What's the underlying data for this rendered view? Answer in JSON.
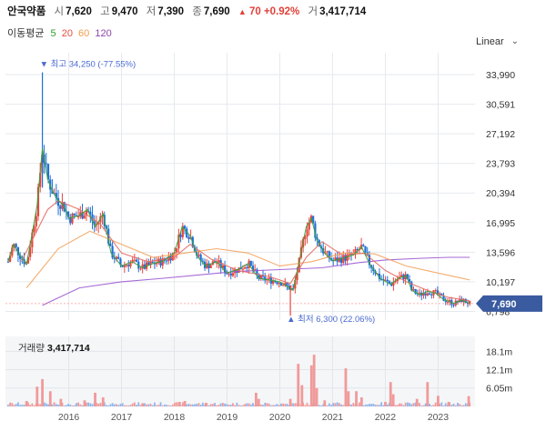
{
  "header": {
    "name": "안국약품",
    "open_label": "시",
    "open": "7,620",
    "high_label": "고",
    "high": "9,470",
    "low_label": "저",
    "low": "7,390",
    "close_label": "종",
    "close": "7,690",
    "change": "70 +0.92%",
    "volume_label": "거",
    "volume": "3,417,714"
  },
  "ma_legend": {
    "title": "이동평균",
    "periods": [
      {
        "label": "5",
        "color": "#2ca02c"
      },
      {
        "label": "20",
        "color": "#e74c3c"
      },
      {
        "label": "60",
        "color": "#f39c4a"
      },
      {
        "label": "120",
        "color": "#8e44ad"
      }
    ]
  },
  "scale_select": {
    "value": "Linear"
  },
  "colors": {
    "up": "#e8453c",
    "down": "#1e6fd9",
    "grid": "#e6e9ee",
    "panel": "#f5f6f8",
    "badge": "#3a5ba0",
    "vol_up": "#f09a9a",
    "vol_down": "#8fb5ea"
  },
  "chart_data": [
    {
      "type": "candlestick",
      "title": "",
      "xlabel": "",
      "ylabel": "",
      "x_tick_labels": [
        "2016",
        "2017",
        "2018",
        "2019",
        "2020",
        "2021",
        "2022",
        "2023"
      ],
      "x_tick_positions": [
        2016,
        2017,
        2018,
        2019,
        2020,
        2021,
        2022,
        2023
      ],
      "x_range": [
        2014.8,
        2023.7
      ],
      "y_tick_labels": [
        "6,798",
        "10,197",
        "13,596",
        "16,995",
        "20,394",
        "23,793",
        "27,192",
        "30,591",
        "33,990"
      ],
      "y_ticks": [
        6798,
        10197,
        13596,
        16995,
        20394,
        23793,
        27192,
        30591,
        33990
      ],
      "ylim": [
        5800,
        36500
      ],
      "scale": "linear",
      "grid": true,
      "high_annotation": {
        "label": "최고 34,250 (-77.55%)",
        "x": 2015.5,
        "value": 34250
      },
      "low_annotation": {
        "label": "최저 6,300 (22.06%)",
        "x": 2020.2,
        "value": 6300
      },
      "last_price": {
        "label": "7,690",
        "value": 7690
      },
      "ohlc_anchors": [
        [
          2014.85,
          12500
        ],
        [
          2014.95,
          14500
        ],
        [
          2015.1,
          13000
        ],
        [
          2015.2,
          12200
        ],
        [
          2015.3,
          15500
        ],
        [
          2015.4,
          19000
        ],
        [
          2015.5,
          25500
        ],
        [
          2015.6,
          22000
        ],
        [
          2015.7,
          20500
        ],
        [
          2015.8,
          19500
        ],
        [
          2015.9,
          19000
        ],
        [
          2016.0,
          17500
        ],
        [
          2016.2,
          17800
        ],
        [
          2016.35,
          18500
        ],
        [
          2016.5,
          16500
        ],
        [
          2016.65,
          18000
        ],
        [
          2016.8,
          13500
        ],
        [
          2017.0,
          12000
        ],
        [
          2017.2,
          12500
        ],
        [
          2017.4,
          11800
        ],
        [
          2017.6,
          12300
        ],
        [
          2017.8,
          12600
        ],
        [
          2018.0,
          13500
        ],
        [
          2018.15,
          16500
        ],
        [
          2018.3,
          15500
        ],
        [
          2018.45,
          13000
        ],
        [
          2018.6,
          12000
        ],
        [
          2018.8,
          12500
        ],
        [
          2019.0,
          11200
        ],
        [
          2019.2,
          11600
        ],
        [
          2019.4,
          12300
        ],
        [
          2019.6,
          10600
        ],
        [
          2019.8,
          10400
        ],
        [
          2020.0,
          10200
        ],
        [
          2020.15,
          9600
        ],
        [
          2020.25,
          9200
        ],
        [
          2020.35,
          12000
        ],
        [
          2020.5,
          16500
        ],
        [
          2020.6,
          17500
        ],
        [
          2020.7,
          15000
        ],
        [
          2020.85,
          13500
        ],
        [
          2021.0,
          12600
        ],
        [
          2021.2,
          12900
        ],
        [
          2021.4,
          13300
        ],
        [
          2021.55,
          14200
        ],
        [
          2021.7,
          12300
        ],
        [
          2021.9,
          10600
        ],
        [
          2022.1,
          9900
        ],
        [
          2022.25,
          10600
        ],
        [
          2022.4,
          10900
        ],
        [
          2022.5,
          9200
        ],
        [
          2022.65,
          8700
        ],
        [
          2022.8,
          9100
        ],
        [
          2022.95,
          8900
        ],
        [
          2023.1,
          8200
        ],
        [
          2023.3,
          7700
        ],
        [
          2023.45,
          8100
        ],
        [
          2023.6,
          7690
        ]
      ],
      "moving_average_anchors": {
        "ma20": [
          [
            2015.1,
            12500
          ],
          [
            2015.6,
            18500
          ],
          [
            2015.8,
            19500
          ],
          [
            2016.2,
            18500
          ],
          [
            2016.6,
            16800
          ],
          [
            2017.0,
            13500
          ],
          [
            2017.5,
            12500
          ],
          [
            2018.0,
            13000
          ],
          [
            2018.3,
            14500
          ],
          [
            2018.7,
            12800
          ],
          [
            2019.2,
            11500
          ],
          [
            2019.8,
            10800
          ],
          [
            2020.2,
            10000
          ],
          [
            2020.5,
            13000
          ],
          [
            2020.8,
            14800
          ],
          [
            2021.2,
            13200
          ],
          [
            2021.6,
            13500
          ],
          [
            2022.0,
            11500
          ],
          [
            2022.4,
            10200
          ],
          [
            2022.8,
            9200
          ],
          [
            2023.2,
            8400
          ],
          [
            2023.6,
            8000
          ]
        ],
        "ma60": [
          [
            2015.2,
            9500
          ],
          [
            2015.8,
            14000
          ],
          [
            2016.4,
            16000
          ],
          [
            2017.0,
            14500
          ],
          [
            2017.6,
            13000
          ],
          [
            2018.2,
            13500
          ],
          [
            2018.8,
            14000
          ],
          [
            2019.4,
            13500
          ],
          [
            2020.0,
            12000
          ],
          [
            2020.6,
            12500
          ],
          [
            2021.2,
            13500
          ],
          [
            2021.8,
            13400
          ],
          [
            2022.4,
            12000
          ],
          [
            2023.0,
            11200
          ],
          [
            2023.6,
            10400
          ]
        ],
        "ma120": [
          [
            2015.5,
            7500
          ],
          [
            2016.2,
            9500
          ],
          [
            2017.0,
            10200
          ],
          [
            2017.8,
            10600
          ],
          [
            2018.5,
            11000
          ],
          [
            2019.2,
            11400
          ],
          [
            2020.0,
            11600
          ],
          [
            2020.8,
            11800
          ],
          [
            2021.5,
            12400
          ],
          [
            2022.0,
            12700
          ],
          [
            2022.7,
            12900
          ],
          [
            2023.2,
            13000
          ],
          [
            2023.6,
            13000
          ]
        ]
      }
    },
    {
      "type": "bar",
      "title": "거래량",
      "value_label": "3,417,714",
      "y_tick_labels": [
        "6.05m",
        "12.1m",
        "18.1m"
      ],
      "y_ticks": [
        6.05,
        12.1,
        18.1
      ],
      "ylim": [
        0,
        23
      ],
      "spikes": [
        {
          "x": 2015.2,
          "value": 1.8
        },
        {
          "x": 2015.4,
          "value": 6.5
        },
        {
          "x": 2015.5,
          "value": 9.0
        },
        {
          "x": 2015.65,
          "value": 5.0
        },
        {
          "x": 2015.85,
          "value": 2.5
        },
        {
          "x": 2016.3,
          "value": 2.0
        },
        {
          "x": 2016.5,
          "value": 4.5
        },
        {
          "x": 2016.65,
          "value": 3.0
        },
        {
          "x": 2017.4,
          "value": 1.0
        },
        {
          "x": 2018.1,
          "value": 1.5
        },
        {
          "x": 2018.2,
          "value": 1.8
        },
        {
          "x": 2018.6,
          "value": 1.2
        },
        {
          "x": 2019.55,
          "value": 4.5
        },
        {
          "x": 2019.6,
          "value": 2.5
        },
        {
          "x": 2020.2,
          "value": 2.5
        },
        {
          "x": 2020.35,
          "value": 14.0
        },
        {
          "x": 2020.42,
          "value": 7.0
        },
        {
          "x": 2020.6,
          "value": 13.5
        },
        {
          "x": 2020.65,
          "value": 17.0
        },
        {
          "x": 2020.7,
          "value": 6.0
        },
        {
          "x": 2020.85,
          "value": 2.0
        },
        {
          "x": 2021.25,
          "value": 12.5
        },
        {
          "x": 2021.3,
          "value": 5.0
        },
        {
          "x": 2021.45,
          "value": 5.0
        },
        {
          "x": 2021.55,
          "value": 3.0
        },
        {
          "x": 2022.0,
          "value": 1.5
        },
        {
          "x": 2022.1,
          "value": 8.0
        },
        {
          "x": 2022.15,
          "value": 4.0
        },
        {
          "x": 2022.6,
          "value": 2.5
        },
        {
          "x": 2022.8,
          "value": 8.0
        },
        {
          "x": 2023.0,
          "value": 3.5
        },
        {
          "x": 2023.2,
          "value": 1.5
        },
        {
          "x": 2023.58,
          "value": 3.4
        }
      ]
    }
  ]
}
